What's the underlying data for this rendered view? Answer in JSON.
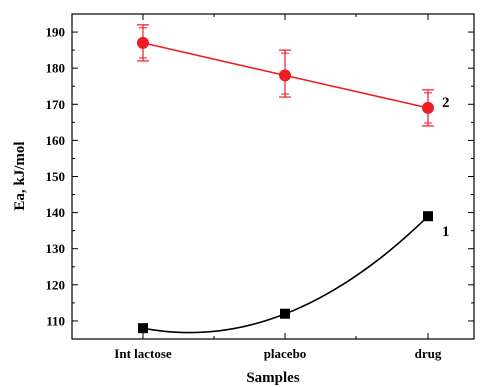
{
  "chart_data": {
    "type": "line",
    "categories": [
      "Int lactose",
      "placebo",
      "drug"
    ],
    "xlabel": "Samples",
    "ylabel": "Ea, kJ/mol",
    "ylim": [
      105,
      195
    ],
    "yticks": [
      110,
      120,
      130,
      140,
      150,
      160,
      170,
      180,
      190
    ],
    "grid": false,
    "series": [
      {
        "name": "2",
        "values": [
          187,
          178,
          169
        ],
        "errors": [
          [
            182,
            192
          ],
          [
            172,
            185
          ],
          [
            164,
            174
          ]
        ],
        "marker": "circle",
        "color": "#ee1c24",
        "fit": "linear"
      },
      {
        "name": "1",
        "values": [
          108,
          112,
          139
        ],
        "marker": "square",
        "color": "#000000",
        "fit": "curve"
      }
    ]
  }
}
